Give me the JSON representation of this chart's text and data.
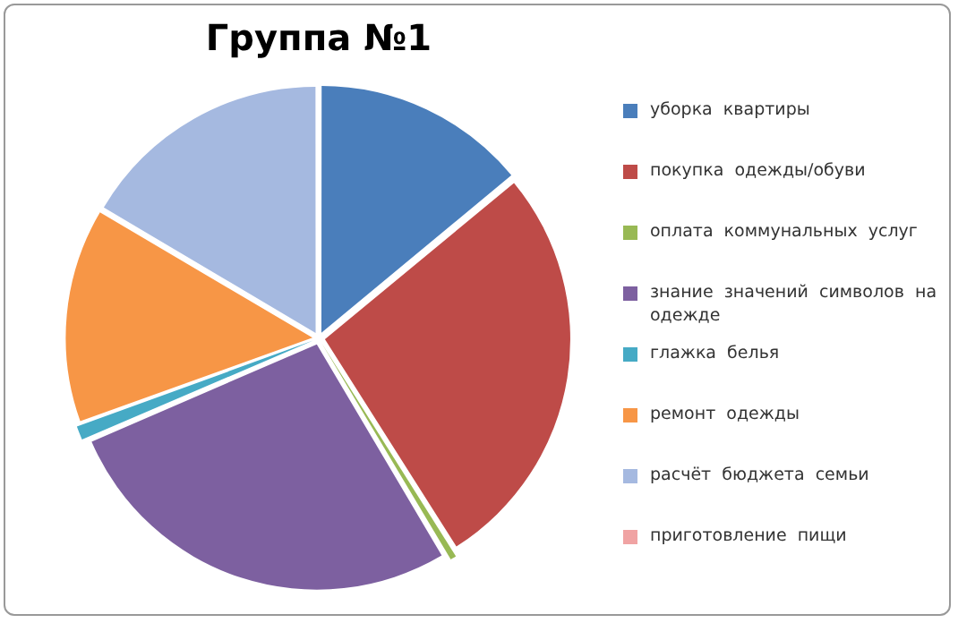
{
  "chart_data": {
    "type": "pie",
    "title": "Группа №1",
    "categories": [
      "уборка  квартиры",
      "покупка  одежды/обуви",
      "оплата  коммунальных  услуг",
      "знание  значений  символов  на  одежде",
      "глажка  белья",
      "ремонт  одежды",
      "расчёт  бюджета  семьи",
      "приготовление  пищи"
    ],
    "values": [
      14,
      27,
      0.5,
      27,
      1,
      14,
      16.5,
      0
    ],
    "colors": [
      "#4a7ebb",
      "#be4b48",
      "#98b954",
      "#7d60a0",
      "#46aac5",
      "#f79646",
      "#a5b9e0",
      "#f0a3a3"
    ],
    "legend": "right"
  }
}
